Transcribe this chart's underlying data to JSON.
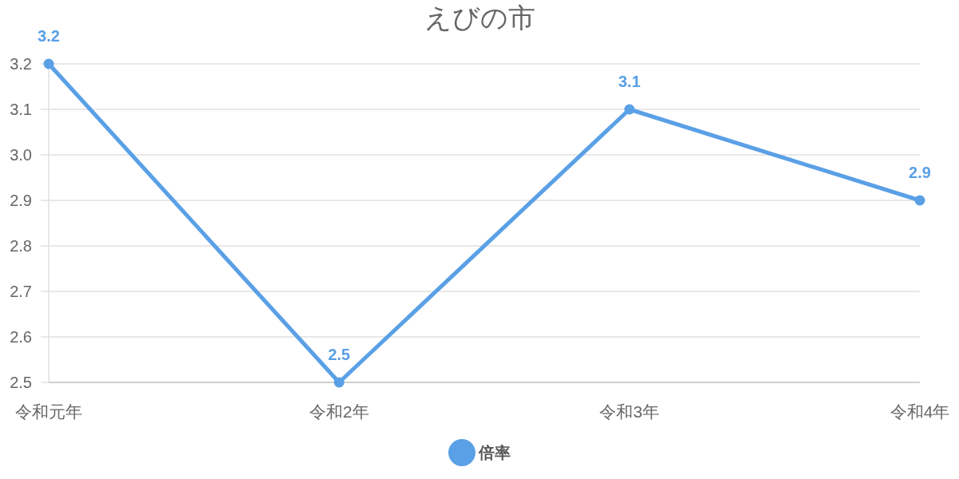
{
  "chart_data": {
    "type": "line",
    "title": "えびの市",
    "categories": [
      "令和元年",
      "令和2年",
      "令和3年",
      "令和4年"
    ],
    "series": [
      {
        "name": "倍率",
        "color": "#5aa0e6",
        "values": [
          3.2,
          2.5,
          3.1,
          2.9
        ]
      }
    ],
    "ylim": [
      2.5,
      3.2
    ],
    "yticks": [
      2.5,
      2.6,
      2.7,
      2.8,
      2.9,
      {
        "value": 3,
        "label": "3.0"
      },
      3.1,
      3.2
    ],
    "grid": "y",
    "legend": "bottom",
    "marker": "circle",
    "line_style": "solid",
    "data_labels": true
  }
}
